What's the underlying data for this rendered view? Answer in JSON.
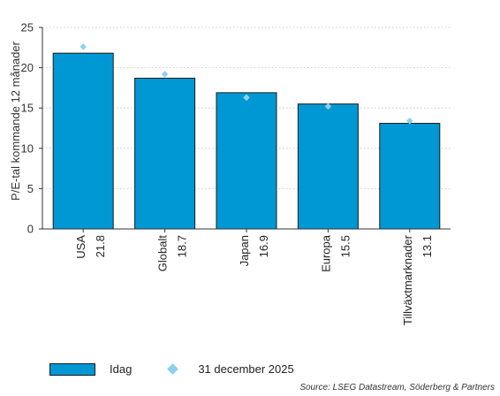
{
  "colors": {
    "bar": "#0098d4",
    "bar_stroke": "#1a1a1a",
    "marker": "#8fd0ee",
    "grid": "#bfbfbf",
    "axis": "#333333"
  },
  "chart_data": {
    "type": "bar",
    "categories": [
      "USA",
      "Globalt",
      "Japan",
      "Europa",
      "Tillväxtmarknader"
    ],
    "value_labels": [
      "21.8",
      "18.7",
      "16.9",
      "15.5",
      "13.1"
    ],
    "series": [
      {
        "name": "Idag",
        "type": "bar",
        "values": [
          21.8,
          18.7,
          16.9,
          15.5,
          13.1
        ]
      },
      {
        "name": "31 december 2025",
        "type": "marker",
        "values": [
          22.6,
          19.2,
          16.3,
          15.2,
          13.4
        ]
      }
    ],
    "ylabel": "P/E-tal kommande 12 månader",
    "yticks": [
      0,
      5,
      10,
      15,
      20,
      25
    ],
    "ylim": [
      0,
      25
    ],
    "grid": true,
    "legend_position": "bottom-left"
  },
  "legend": {
    "bar_label": "Idag",
    "marker_label": "31 december 2025"
  },
  "source": "Source: LSEG Datastream, Söderberg & Partners"
}
